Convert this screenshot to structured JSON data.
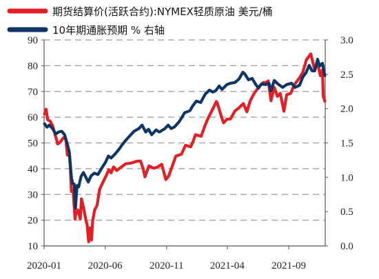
{
  "chart_data": {
    "type": "line",
    "legend": {
      "placement": "top-left"
    },
    "grid": {
      "y": true,
      "x": false,
      "style": "dashed"
    },
    "series": [
      {
        "name": "期货结算价(活跃合约):NYMEX轻质原油 美元/桶",
        "axis": "left",
        "color": "#e31e25",
        "points": [
          [
            "2020-01-02",
            61.2
          ],
          [
            "2020-01-06",
            63.1
          ],
          [
            "2020-01-10",
            59.0
          ],
          [
            "2020-01-16",
            58.5
          ],
          [
            "2020-01-22",
            56.8
          ],
          [
            "2020-01-28",
            53.5
          ],
          [
            "2020-02-04",
            49.6
          ],
          [
            "2020-02-10",
            50.3
          ],
          [
            "2020-02-18",
            52.0
          ],
          [
            "2020-02-24",
            51.4
          ],
          [
            "2020-02-28",
            45.3
          ],
          [
            "2020-03-03",
            47.2
          ],
          [
            "2020-03-06",
            41.3
          ],
          [
            "2020-03-09",
            31.1
          ],
          [
            "2020-03-13",
            31.7
          ],
          [
            "2020-03-18",
            20.4
          ],
          [
            "2020-03-20",
            22.5
          ],
          [
            "2020-03-25",
            24.0
          ],
          [
            "2020-03-31",
            20.5
          ],
          [
            "2020-04-03",
            28.3
          ],
          [
            "2020-04-08",
            25.1
          ],
          [
            "2020-04-14",
            20.1
          ],
          [
            "2020-04-17",
            18.3
          ],
          [
            "2020-04-21",
            11.6
          ],
          [
            "2020-04-24",
            17.0
          ],
          [
            "2020-04-28",
            12.3
          ],
          [
            "2020-05-01",
            19.8
          ],
          [
            "2020-05-06",
            24.0
          ],
          [
            "2020-05-12",
            25.8
          ],
          [
            "2020-05-18",
            31.8
          ],
          [
            "2020-05-22",
            33.3
          ],
          [
            "2020-05-29",
            35.5
          ],
          [
            "2020-06-04",
            37.4
          ],
          [
            "2020-06-10",
            39.6
          ],
          [
            "2020-06-16",
            38.4
          ],
          [
            "2020-06-22",
            40.7
          ],
          [
            "2020-06-30",
            39.3
          ],
          [
            "2020-07-10",
            40.5
          ],
          [
            "2020-07-22",
            41.9
          ],
          [
            "2020-08-05",
            42.2
          ],
          [
            "2020-08-19",
            42.9
          ],
          [
            "2020-08-28",
            43.0
          ],
          [
            "2020-09-04",
            39.8
          ],
          [
            "2020-09-08",
            36.8
          ],
          [
            "2020-09-18",
            41.1
          ],
          [
            "2020-09-30",
            40.2
          ],
          [
            "2020-10-09",
            40.6
          ],
          [
            "2020-10-20",
            41.7
          ],
          [
            "2020-10-30",
            35.8
          ],
          [
            "2020-11-06",
            37.1
          ],
          [
            "2020-11-13",
            40.1
          ],
          [
            "2020-11-24",
            44.9
          ],
          [
            "2020-12-08",
            45.6
          ],
          [
            "2020-12-18",
            49.1
          ],
          [
            "2020-12-31",
            48.5
          ],
          [
            "2021-01-06",
            50.6
          ],
          [
            "2021-01-12",
            53.2
          ],
          [
            "2021-01-26",
            52.6
          ],
          [
            "2021-02-05",
            56.9
          ],
          [
            "2021-02-12",
            59.5
          ],
          [
            "2021-02-25",
            63.5
          ],
          [
            "2021-03-05",
            66.1
          ],
          [
            "2021-03-08",
            65.1
          ],
          [
            "2021-03-18",
            60.0
          ],
          [
            "2021-03-23",
            57.8
          ],
          [
            "2021-03-31",
            59.2
          ],
          [
            "2021-04-09",
            59.3
          ],
          [
            "2021-04-20",
            62.4
          ],
          [
            "2021-04-30",
            63.6
          ],
          [
            "2021-05-11",
            65.3
          ],
          [
            "2021-05-20",
            62.1
          ],
          [
            "2021-05-28",
            66.3
          ],
          [
            "2021-06-07",
            69.2
          ],
          [
            "2021-06-18",
            71.6
          ],
          [
            "2021-06-30",
            73.5
          ],
          [
            "2021-07-06",
            73.4
          ],
          [
            "2021-07-12",
            74.1
          ],
          [
            "2021-07-19",
            66.4
          ],
          [
            "2021-07-27",
            71.6
          ],
          [
            "2021-08-04",
            68.1
          ],
          [
            "2021-08-11",
            69.3
          ],
          [
            "2021-08-20",
            62.3
          ],
          [
            "2021-08-27",
            68.7
          ],
          [
            "2021-09-06",
            69.3
          ],
          [
            "2021-09-15",
            72.6
          ],
          [
            "2021-09-28",
            75.3
          ],
          [
            "2021-10-06",
            77.4
          ],
          [
            "2021-10-15",
            82.3
          ],
          [
            "2021-10-26",
            84.6
          ],
          [
            "2021-11-04",
            78.8
          ],
          [
            "2021-11-12",
            80.8
          ],
          [
            "2021-11-19",
            76.1
          ],
          [
            "2021-11-24",
            78.4
          ],
          [
            "2021-11-26",
            68.2
          ],
          [
            "2021-11-30",
            66.2
          ]
        ]
      },
      {
        "name": "10年期通胀预期 % 右轴",
        "axis": "right",
        "color": "#0e3563",
        "points": [
          [
            "2020-01-02",
            1.78
          ],
          [
            "2020-01-08",
            1.73
          ],
          [
            "2020-01-14",
            1.76
          ],
          [
            "2020-01-22",
            1.71
          ],
          [
            "2020-01-30",
            1.63
          ],
          [
            "2020-02-06",
            1.66
          ],
          [
            "2020-02-14",
            1.67
          ],
          [
            "2020-02-21",
            1.62
          ],
          [
            "2020-02-28",
            1.48
          ],
          [
            "2020-03-04",
            1.36
          ],
          [
            "2020-03-09",
            1.0
          ],
          [
            "2020-03-12",
            0.91
          ],
          [
            "2020-03-16",
            0.9
          ],
          [
            "2020-03-19",
            0.55
          ],
          [
            "2020-03-23",
            0.88
          ],
          [
            "2020-03-27",
            0.86
          ],
          [
            "2020-04-02",
            1.01
          ],
          [
            "2020-04-08",
            1.07
          ],
          [
            "2020-04-14",
            1.0
          ],
          [
            "2020-04-20",
            0.93
          ],
          [
            "2020-04-27",
            1.02
          ],
          [
            "2020-05-05",
            1.06
          ],
          [
            "2020-05-14",
            1.04
          ],
          [
            "2020-05-22",
            1.12
          ],
          [
            "2020-06-02",
            1.22
          ],
          [
            "2020-06-09",
            1.31
          ],
          [
            "2020-06-16",
            1.28
          ],
          [
            "2020-06-26",
            1.34
          ],
          [
            "2020-07-07",
            1.42
          ],
          [
            "2020-07-14",
            1.48
          ],
          [
            "2020-07-24",
            1.55
          ],
          [
            "2020-08-04",
            1.62
          ],
          [
            "2020-08-12",
            1.67
          ],
          [
            "2020-08-24",
            1.71
          ],
          [
            "2020-09-01",
            1.76
          ],
          [
            "2020-09-10",
            1.66
          ],
          [
            "2020-09-17",
            1.7
          ],
          [
            "2020-09-25",
            1.62
          ],
          [
            "2020-10-06",
            1.69
          ],
          [
            "2020-10-14",
            1.66
          ],
          [
            "2020-10-28",
            1.71
          ],
          [
            "2020-11-05",
            1.76
          ],
          [
            "2020-11-12",
            1.71
          ],
          [
            "2020-11-20",
            1.73
          ],
          [
            "2020-12-01",
            1.8
          ],
          [
            "2020-12-09",
            1.87
          ],
          [
            "2020-12-16",
            1.94
          ],
          [
            "2020-12-29",
            1.97
          ],
          [
            "2021-01-05",
            2.04
          ],
          [
            "2021-01-14",
            2.11
          ],
          [
            "2021-01-25",
            2.09
          ],
          [
            "2021-02-05",
            2.21
          ],
          [
            "2021-02-16",
            2.27
          ],
          [
            "2021-02-24",
            2.24
          ],
          [
            "2021-03-03",
            2.26
          ],
          [
            "2021-03-12",
            2.33
          ],
          [
            "2021-03-19",
            2.28
          ],
          [
            "2021-03-31",
            2.35
          ],
          [
            "2021-04-09",
            2.37
          ],
          [
            "2021-04-20",
            2.38
          ],
          [
            "2021-04-30",
            2.43
          ],
          [
            "2021-05-10",
            2.53
          ],
          [
            "2021-05-14",
            2.51
          ],
          [
            "2021-05-24",
            2.42
          ],
          [
            "2021-06-02",
            2.44
          ],
          [
            "2021-06-11",
            2.35
          ],
          [
            "2021-06-18",
            2.3
          ],
          [
            "2021-06-25",
            2.36
          ],
          [
            "2021-07-06",
            2.35
          ],
          [
            "2021-07-14",
            2.37
          ],
          [
            "2021-07-19",
            2.26
          ],
          [
            "2021-07-27",
            2.41
          ],
          [
            "2021-08-05",
            2.36
          ],
          [
            "2021-08-17",
            2.31
          ],
          [
            "2021-08-27",
            2.35
          ],
          [
            "2021-09-08",
            2.37
          ],
          [
            "2021-09-17",
            2.31
          ],
          [
            "2021-09-28",
            2.34
          ],
          [
            "2021-10-06",
            2.46
          ],
          [
            "2021-10-14",
            2.52
          ],
          [
            "2021-10-22",
            2.63
          ],
          [
            "2021-10-29",
            2.55
          ],
          [
            "2021-11-05",
            2.55
          ],
          [
            "2021-11-12",
            2.72
          ],
          [
            "2021-11-17",
            2.62
          ],
          [
            "2021-11-24",
            2.66
          ],
          [
            "2021-11-30",
            2.48
          ]
        ]
      }
    ],
    "x_axis": {
      "type": "date",
      "range": [
        "2020-01-01",
        "2021-12-01"
      ],
      "ticks": [
        {
          "date": "2020-01-01",
          "label": "2020-01"
        },
        {
          "date": "2020-06-01",
          "label": "2020-06"
        },
        {
          "date": "2020-11-01",
          "label": "2020-11"
        },
        {
          "date": "2021-04-01",
          "label": "2021-04"
        },
        {
          "date": "2021-09-01",
          "label": "2021-09"
        }
      ]
    },
    "y_left": {
      "range": [
        10,
        90
      ],
      "ticks": [
        {
          "value": 10,
          "label": "10"
        },
        {
          "value": 20,
          "label": "20"
        },
        {
          "value": 30,
          "label": "30"
        },
        {
          "value": 40,
          "label": "40"
        },
        {
          "value": 50,
          "label": "50"
        },
        {
          "value": 60,
          "label": "60"
        },
        {
          "value": 70,
          "label": "70"
        },
        {
          "value": 80,
          "label": "80"
        },
        {
          "value": 90,
          "label": "90"
        }
      ]
    },
    "y_right": {
      "range": [
        0,
        3
      ],
      "ticks": [
        {
          "value": 0,
          "label": "0.0"
        },
        {
          "value": 0.5,
          "label": "0.5"
        },
        {
          "value": 1,
          "label": "1.0"
        },
        {
          "value": 1.5,
          "label": "1.5"
        },
        {
          "value": 2,
          "label": "2.0"
        },
        {
          "value": 2.5,
          "label": "2.5"
        },
        {
          "value": 3,
          "label": "3.0"
        }
      ]
    }
  }
}
